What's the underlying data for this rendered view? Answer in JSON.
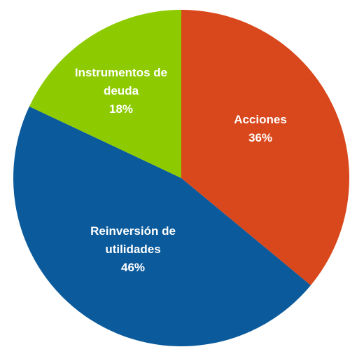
{
  "chart_data": {
    "type": "pie",
    "categories": [
      "Acciones",
      "Reinversión de utilidades",
      "Instrumentos de deuda"
    ],
    "values": [
      36,
      46,
      18
    ],
    "value_labels": [
      "36%",
      "46%",
      "18%"
    ],
    "colors": [
      "#d9481c",
      "#0a5a9c",
      "#8dcb00"
    ]
  }
}
